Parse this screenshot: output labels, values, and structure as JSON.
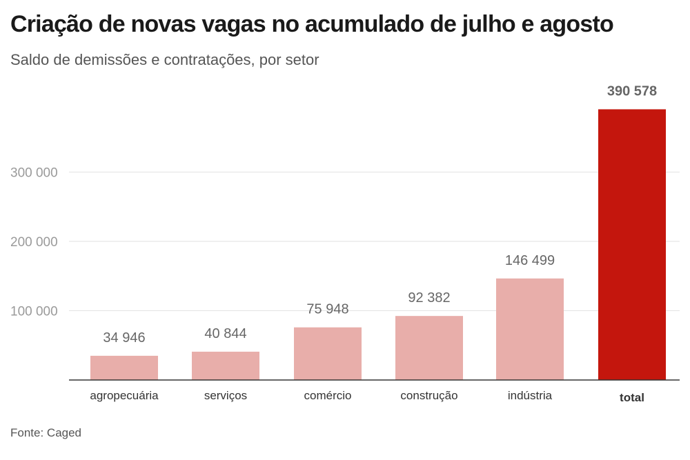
{
  "title": "Criação de novas vagas no acumulado de julho e agosto",
  "subtitle": "Saldo de demissões e contratações, por setor",
  "source": "Fonte: Caged",
  "colors": {
    "bar": "#e8aeaa",
    "highlight": "#c4160d",
    "grid": "#e2e2e2",
    "axis": "#333333"
  },
  "chart_data": {
    "type": "bar",
    "categories": [
      "agropecuária",
      "serviços",
      "comércio",
      "construção",
      "indústria",
      "total"
    ],
    "values": [
      34946,
      40844,
      75948,
      92382,
      146499,
      390578
    ],
    "value_labels": [
      "34 946",
      "40 844",
      "75 948",
      "92 382",
      "146 499",
      "390 578"
    ],
    "highlight_category": "total",
    "yticks": [
      100000,
      200000,
      300000
    ],
    "ytick_labels": [
      "100 000",
      "200 000",
      "300 000"
    ],
    "ylim": [
      0,
      400000
    ],
    "grid": true,
    "legend": false
  }
}
